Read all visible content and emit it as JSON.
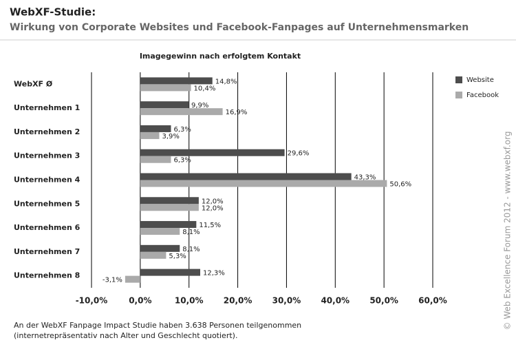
{
  "chart_data": {
    "type": "barh",
    "title": "WebXF-Studie:",
    "subtitle": "Wirkung von Corporate Websites und Facebook-Fanpages auf Unternehmensmarken",
    "chart_title": "Imagegewinn nach erfolgtem Kontakt",
    "categories": [
      "WebXF Ø",
      "Unternehmen 1",
      "Unternehmen 2",
      "Unternehmen 3",
      "Unternehmen 4",
      "Unternehmen 5",
      "Unternehmen 6",
      "Unternehmen 7",
      "Unternehmen 8"
    ],
    "series": [
      {
        "name": "Website",
        "color": "#4d4d4d",
        "values": [
          14.8,
          9.9,
          6.3,
          29.6,
          43.3,
          12.0,
          11.5,
          8.1,
          12.3
        ],
        "value_labels": [
          "14,8%",
          "9,9%",
          "6,3%",
          "29,6%",
          "43,3%",
          "12,0%",
          "11,5%",
          "8,1%",
          "12,3%"
        ]
      },
      {
        "name": "Facebook",
        "color": "#aaaaaa",
        "values": [
          10.4,
          16.9,
          3.9,
          6.3,
          50.6,
          12.0,
          8.1,
          5.3,
          -3.1
        ],
        "value_labels": [
          "10,4%",
          "16,9%",
          "3,9%",
          "6,3%",
          "50,6%",
          "12,0%",
          "8,1%",
          "5,3%",
          "-3,1%"
        ]
      }
    ],
    "xlim": [
      -10,
      60
    ],
    "xticks": [
      {
        "value": -10,
        "label": "-10,0%"
      },
      {
        "value": 0,
        "label": "0,0%"
      },
      {
        "value": 10,
        "label": "10,0%"
      },
      {
        "value": 20,
        "label": "20,0%"
      },
      {
        "value": 30,
        "label": "30,0%"
      },
      {
        "value": 40,
        "label": "40,0%"
      },
      {
        "value": 50,
        "label": "50,0%"
      },
      {
        "value": 60,
        "label": "60,0%"
      }
    ],
    "grid": true,
    "legend": "upper-right",
    "footnote": [
      "An der WebXF Fanpage Impact Studie haben 3.638 Personen teilgenommen",
      "(internetrepräsentativ nach Alter und Geschlecht quotiert)."
    ],
    "copyright": "© Web Excellence Forum 2012 - www.webxf.org"
  }
}
